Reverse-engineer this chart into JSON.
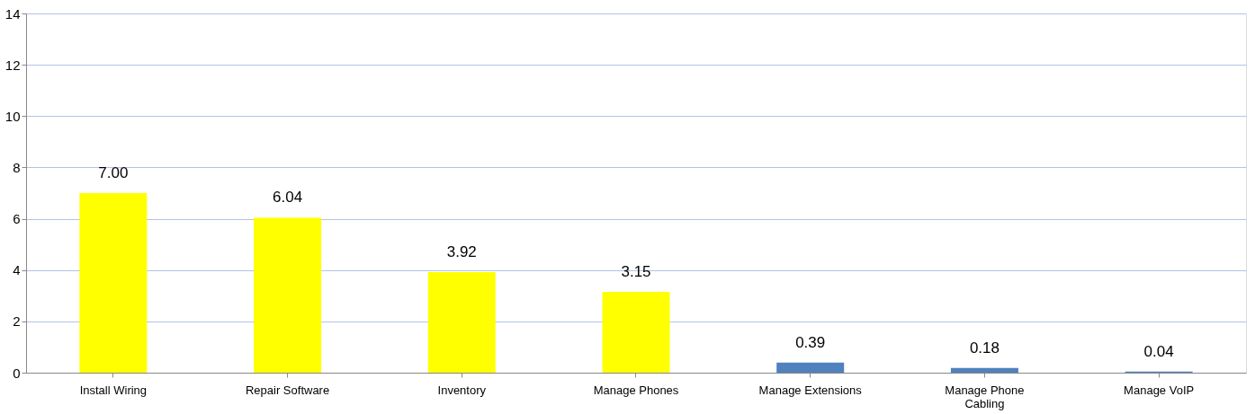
{
  "chart_data": {
    "type": "bar",
    "categories": [
      "Install Wiring",
      "Repair Software",
      "Inventory",
      "Manage Phones",
      "Manage Extensions",
      "Manage Phone Cabling",
      "Manage VoIP"
    ],
    "values": [
      7.0,
      6.04,
      3.92,
      3.15,
      0.39,
      0.18,
      0.04
    ],
    "colors": [
      "#ffff00",
      "#ffff00",
      "#ffff00",
      "#ffff00",
      "#4f81bd",
      "#4f81bd",
      "#4f81bd"
    ],
    "value_labels": [
      "7.00",
      "6.04",
      "3.92",
      "3.15",
      "0.39",
      "0.18",
      "0.04"
    ],
    "ylim": [
      0,
      14
    ],
    "yticks": [
      0,
      2,
      4,
      6,
      8,
      10,
      12,
      14
    ],
    "grid": "y"
  }
}
